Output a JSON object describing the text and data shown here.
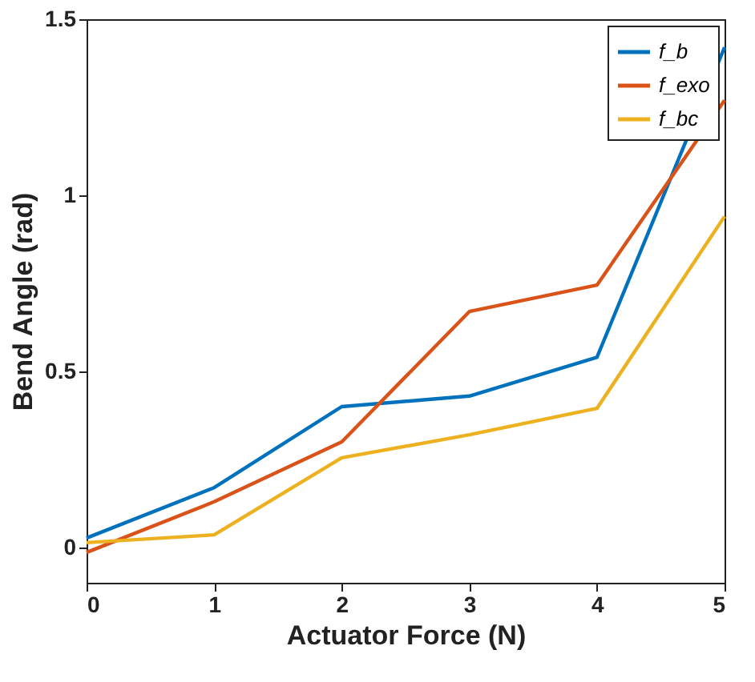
{
  "chart_data": {
    "type": "line",
    "xlabel": "Actuator Force (N)",
    "ylabel": "Bend Angle (rad)",
    "x": [
      0,
      1,
      2,
      3,
      4,
      5
    ],
    "series": [
      {
        "name": "f_b",
        "color": "#0072bd",
        "values": [
          0.027,
          0.17,
          0.4,
          0.43,
          0.54,
          1.42
        ]
      },
      {
        "name": "f_exo",
        "color": "#d95319",
        "values": [
          -0.014,
          0.13,
          0.3,
          0.67,
          0.745,
          1.27
        ]
      },
      {
        "name": "f_bc",
        "color": "#edb120",
        "values": [
          0.014,
          0.036,
          0.255,
          0.32,
          0.395,
          0.94
        ]
      }
    ],
    "xlim": [
      0,
      5
    ],
    "xticks": [
      0,
      1,
      2,
      3,
      4,
      5
    ],
    "ylim": [
      -0.1,
      1.5
    ],
    "yticks": [
      0,
      0.5,
      1,
      1.5
    ],
    "grid": false,
    "legend": "top right",
    "marker": "none",
    "line_style": "solid"
  }
}
